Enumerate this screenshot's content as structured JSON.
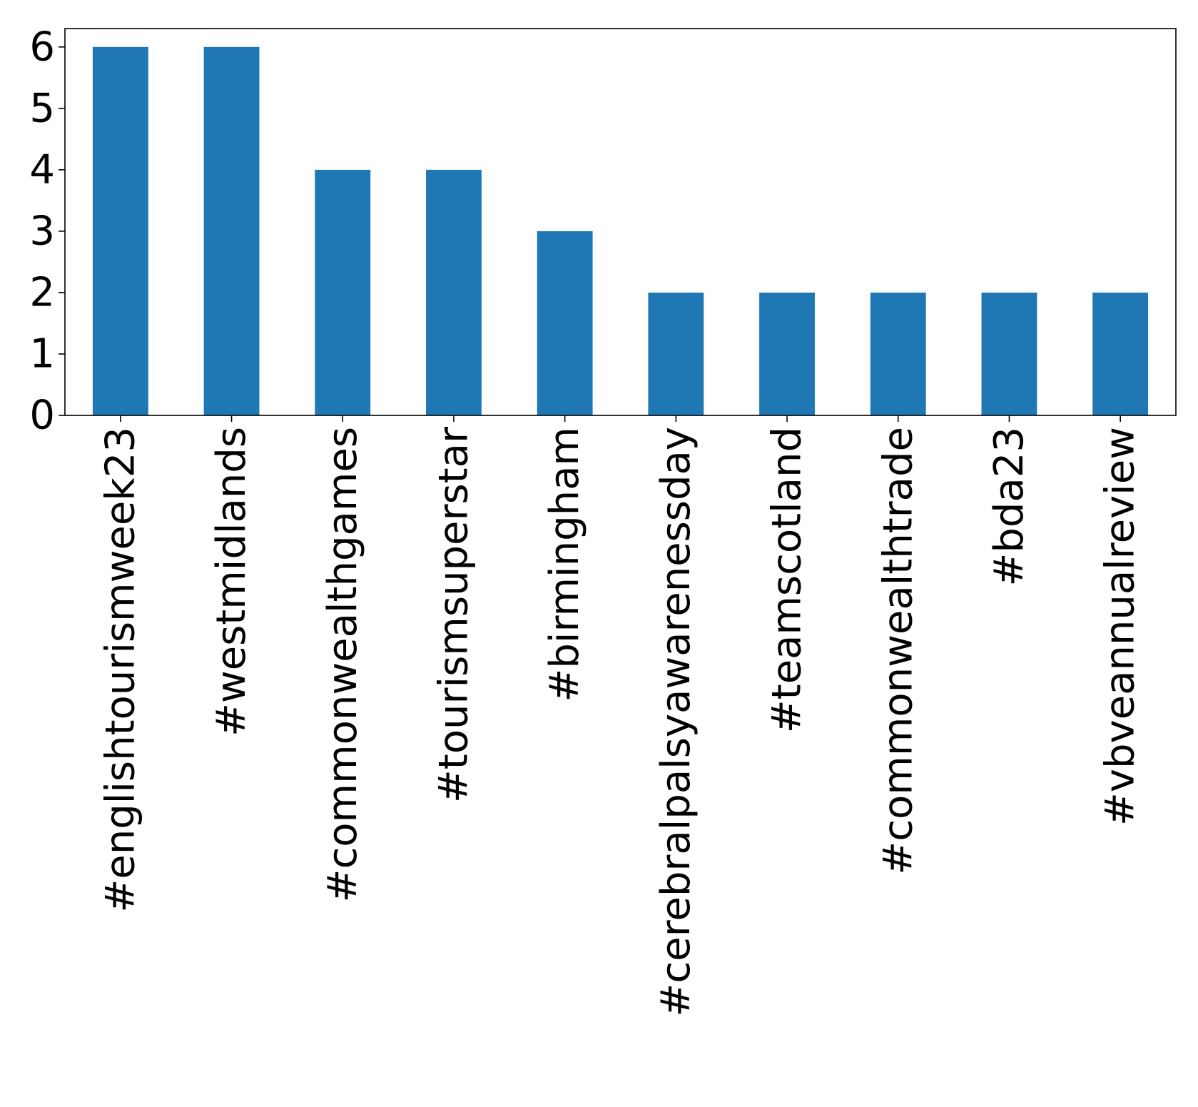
{
  "chart_data": {
    "type": "bar",
    "categories": [
      "#englishtourismweek23",
      "#westmidlands",
      "#commonwealthgames",
      "#tourismsuperstar",
      "#birmingham",
      "#cerebralpalsyawarenessday",
      "#teamscotland",
      "#commonwealthtrade",
      "#bda23",
      "#vbveannualreview"
    ],
    "values": [
      6,
      6,
      4,
      4,
      3,
      2,
      2,
      2,
      2,
      2
    ],
    "ylim": [
      0,
      6.3
    ],
    "yticks": [
      0,
      1,
      2,
      3,
      4,
      5,
      6
    ],
    "bar_color": "#1f77b4",
    "grid": false,
    "legend": false
  }
}
